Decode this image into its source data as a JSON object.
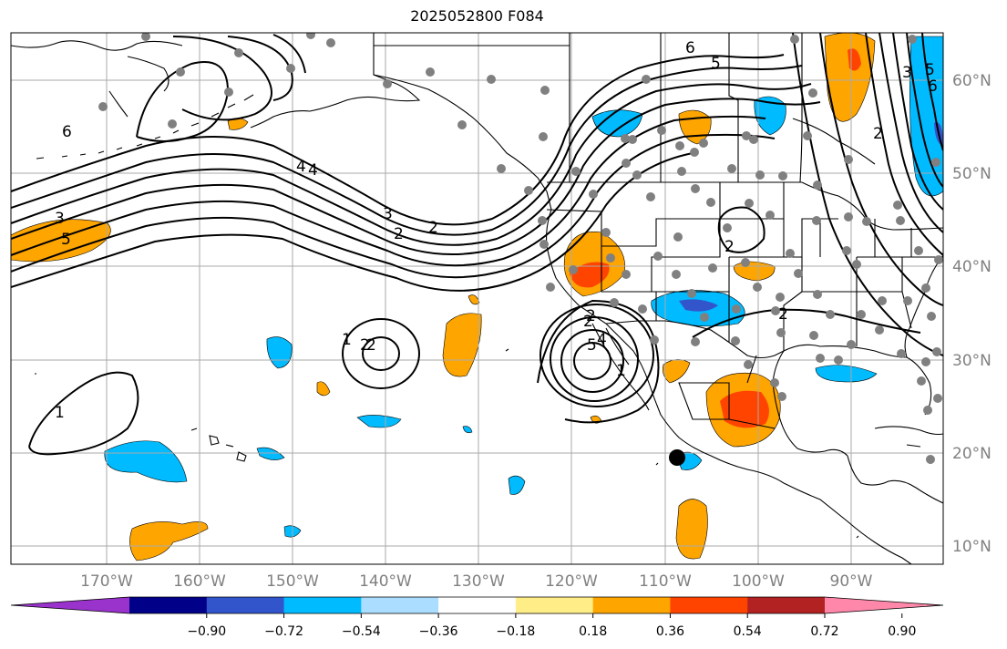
{
  "title": "2025052800 F084",
  "latitudes": [
    {
      "label": "60°N",
      "value": 60
    },
    {
      "label": "50°N",
      "value": 50
    },
    {
      "label": "40°N",
      "value": 40
    },
    {
      "label": "30°N",
      "value": 30
    },
    {
      "label": "20°N",
      "value": 20
    },
    {
      "label": "10°N",
      "value": 10
    }
  ],
  "longitudes": [
    {
      "label": "170°W",
      "value": -170
    },
    {
      "label": "160°W",
      "value": -160
    },
    {
      "label": "150°W",
      "value": -150
    },
    {
      "label": "140°W",
      "value": -140
    },
    {
      "label": "130°W",
      "value": -130
    },
    {
      "label": "120°W",
      "value": -120
    },
    {
      "label": "110°W",
      "value": -110
    },
    {
      "label": "100°W",
      "value": -100
    },
    {
      "label": "90°W",
      "value": -90
    }
  ],
  "colorbar": {
    "ticks": [
      "−0.90",
      "−0.72",
      "−0.54",
      "−0.36",
      "−0.18",
      "0.18",
      "0.36",
      "0.54",
      "0.72",
      "0.90"
    ],
    "colors": [
      "#9933cc",
      "#000088",
      "#3355cc",
      "#00bbff",
      "#aaddff",
      "#ffffff",
      "#ffee88",
      "#ffa500",
      "#ff4400",
      "#b22222",
      "#ff88aa"
    ]
  },
  "contour_labels": [
    "6",
    "5",
    "4",
    "3",
    "2",
    "1",
    "2",
    "3",
    "5",
    "6",
    "2",
    "4",
    "2",
    "2",
    "5",
    "4",
    "2",
    "1",
    "2",
    "6",
    "5",
    "3",
    "2",
    "2",
    "1"
  ],
  "colors": {
    "frame": "#000000",
    "grid": "#aaaaaa",
    "station": "#808080",
    "coast": "#000000"
  }
}
